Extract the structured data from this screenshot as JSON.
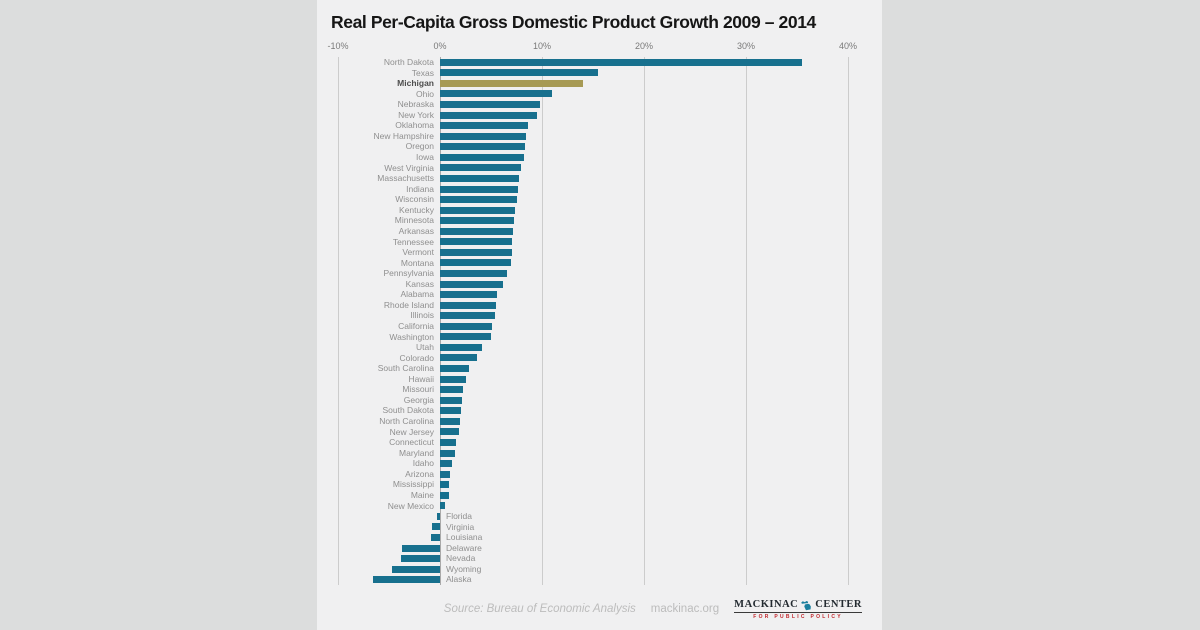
{
  "page": {
    "background": "#dcdddd",
    "panel_background": "#f0f0f1"
  },
  "chart_data": {
    "type": "bar",
    "orientation": "horizontal",
    "title": "Real Per-Capita Gross Domestic Product Growth 2009 – 2014",
    "x_axis": {
      "unit": "%",
      "min": -10,
      "max": 40,
      "grid": true,
      "ticks": [
        {
          "label": "-10%",
          "value": -10
        },
        {
          "label": "0%",
          "value": 0
        },
        {
          "label": "10%",
          "value": 10
        },
        {
          "label": "20%",
          "value": 20
        },
        {
          "label": "30%",
          "value": 30
        },
        {
          "label": "40%",
          "value": 40
        }
      ]
    },
    "bar_color": "#17708e",
    "highlight_state": "Michigan",
    "highlight_color": "#a79a54",
    "states": [
      {
        "name": "North Dakota",
        "value": 35.5
      },
      {
        "name": "Texas",
        "value": 15.5
      },
      {
        "name": "Michigan",
        "value": 14.0
      },
      {
        "name": "Ohio",
        "value": 11.0
      },
      {
        "name": "Nebraska",
        "value": 9.8
      },
      {
        "name": "New York",
        "value": 9.5
      },
      {
        "name": "Oklahoma",
        "value": 8.6
      },
      {
        "name": "New Hampshire",
        "value": 8.4
      },
      {
        "name": "Oregon",
        "value": 8.3
      },
      {
        "name": "Iowa",
        "value": 8.2
      },
      {
        "name": "West Virginia",
        "value": 7.9
      },
      {
        "name": "Massachusetts",
        "value": 7.7
      },
      {
        "name": "Indiana",
        "value": 7.6
      },
      {
        "name": "Wisconsin",
        "value": 7.5
      },
      {
        "name": "Kentucky",
        "value": 7.4
      },
      {
        "name": "Minnesota",
        "value": 7.3
      },
      {
        "name": "Arkansas",
        "value": 7.2
      },
      {
        "name": "Tennessee",
        "value": 7.1
      },
      {
        "name": "Vermont",
        "value": 7.1
      },
      {
        "name": "Montana",
        "value": 7.0
      },
      {
        "name": "Pennsylvania",
        "value": 6.6
      },
      {
        "name": "Kansas",
        "value": 6.2
      },
      {
        "name": "Alabama",
        "value": 5.6
      },
      {
        "name": "Rhode Island",
        "value": 5.5
      },
      {
        "name": "Illinois",
        "value": 5.4
      },
      {
        "name": "California",
        "value": 5.1
      },
      {
        "name": "Washington",
        "value": 5.0
      },
      {
        "name": "Utah",
        "value": 4.1
      },
      {
        "name": "Colorado",
        "value": 3.6
      },
      {
        "name": "South Carolina",
        "value": 2.8
      },
      {
        "name": "Hawaii",
        "value": 2.5
      },
      {
        "name": "Missouri",
        "value": 2.3
      },
      {
        "name": "Georgia",
        "value": 2.2
      },
      {
        "name": "South Dakota",
        "value": 2.1
      },
      {
        "name": "North Carolina",
        "value": 2.0
      },
      {
        "name": "New Jersey",
        "value": 1.9
      },
      {
        "name": "Connecticut",
        "value": 1.6
      },
      {
        "name": "Maryland",
        "value": 1.5
      },
      {
        "name": "Idaho",
        "value": 1.2
      },
      {
        "name": "Arizona",
        "value": 1.0
      },
      {
        "name": "Mississippi",
        "value": 0.9
      },
      {
        "name": "Maine",
        "value": 0.9
      },
      {
        "name": "New Mexico",
        "value": 0.5
      },
      {
        "name": "Florida",
        "value": -0.3
      },
      {
        "name": "Virginia",
        "value": -0.8
      },
      {
        "name": "Louisiana",
        "value": -0.9
      },
      {
        "name": "Delaware",
        "value": -3.7
      },
      {
        "name": "Nevada",
        "value": -3.8
      },
      {
        "name": "Wyoming",
        "value": -4.7
      },
      {
        "name": "Alaska",
        "value": -6.6
      }
    ]
  },
  "footer": {
    "source": "Source: Bureau of Economic Analysis",
    "site": "mackinac.org",
    "logo": {
      "left": "MACKINAC",
      "right": "CENTER",
      "tagline": "FOR PUBLIC POLICY",
      "icon_color": "#1b7f9e",
      "text_color": "#232a30",
      "tagline_color": "#c1272d"
    }
  }
}
